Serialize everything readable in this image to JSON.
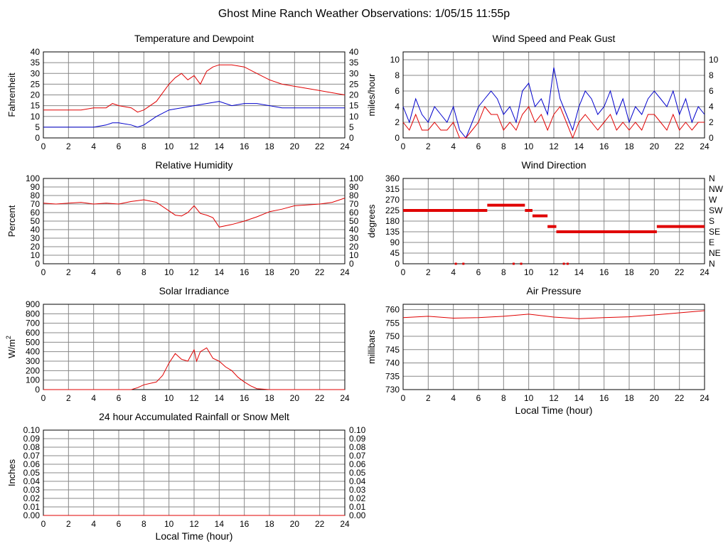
{
  "page_title": "Ghost Mine Ranch Weather Observations: 1/05/15 11:55p",
  "colors": {
    "red": "#e00000",
    "blue": "#0000cc",
    "grid": "#888888",
    "axis": "#000000"
  },
  "chart_data": [
    {
      "id": "temperature",
      "type": "line",
      "title": "Temperature and Dewpoint",
      "ylabel": "Fahrenheit",
      "xlabel": "",
      "xlim": [
        0,
        24
      ],
      "ylim": [
        0,
        40
      ],
      "x_ticks": [
        "0",
        "2",
        "4",
        "6",
        "8",
        "10",
        "12",
        "14",
        "16",
        "18",
        "20",
        "22",
        "24"
      ],
      "y_ticks": [
        "0",
        "5",
        "10",
        "15",
        "20",
        "25",
        "30",
        "35",
        "40"
      ],
      "right_ticks": [
        "0",
        "5",
        "10",
        "15",
        "20",
        "25",
        "30",
        "35",
        "40"
      ],
      "grid": true,
      "series": [
        {
          "color": "#e00000",
          "step": false,
          "x": [
            0,
            1,
            2,
            3,
            4,
            5,
            5.5,
            6,
            7,
            7.5,
            8,
            9,
            10,
            10.5,
            11,
            11.5,
            12,
            12.5,
            13,
            13.5,
            14,
            15,
            16,
            17,
            18,
            19,
            20,
            21,
            22,
            23,
            24
          ],
          "y": [
            13,
            13,
            13,
            13,
            14,
            14,
            16,
            15,
            14,
            12,
            13,
            17,
            25,
            28,
            30,
            27,
            29,
            25,
            31,
            33,
            34,
            34,
            33,
            30,
            27,
            25,
            24,
            23,
            22,
            21,
            20
          ]
        },
        {
          "color": "#0000cc",
          "step": false,
          "x": [
            0,
            1,
            2,
            3,
            4,
            5,
            5.5,
            6,
            7,
            7.5,
            8,
            9,
            10,
            11,
            12,
            13,
            14,
            15,
            16,
            17,
            18,
            19,
            20,
            21,
            22,
            23,
            24
          ],
          "y": [
            5,
            5,
            5,
            5,
            5,
            6,
            7,
            7,
            6,
            5,
            6,
            10,
            13,
            14,
            15,
            16,
            17,
            15,
            16,
            16,
            15,
            14,
            14,
            14,
            14,
            14,
            14
          ]
        }
      ]
    },
    {
      "id": "wind_speed",
      "type": "line",
      "title": "Wind Speed and Peak Gust",
      "ylabel": "miles/hour",
      "xlabel": "",
      "xlim": [
        0,
        24
      ],
      "ylim": [
        0,
        11
      ],
      "x_ticks": [
        "0",
        "2",
        "4",
        "6",
        "8",
        "10",
        "12",
        "14",
        "16",
        "18",
        "20",
        "22",
        "24"
      ],
      "y_ticks": [
        "0",
        "2",
        "4",
        "6",
        "8",
        "10"
      ],
      "y_tick_values": [
        0,
        2,
        4,
        6,
        8,
        10
      ],
      "right_ticks": [
        "0",
        "2",
        "4",
        "6",
        "8",
        "10"
      ],
      "grid": true,
      "series": [
        {
          "color": "#0000cc",
          "step": false,
          "x": [
            0,
            0.5,
            1,
            1.5,
            2,
            2.5,
            3,
            3.5,
            4,
            4.5,
            5,
            5.5,
            6,
            6.5,
            7,
            7.5,
            8,
            8.5,
            9,
            9.5,
            10,
            10.5,
            11,
            11.5,
            12,
            12.5,
            13,
            13.5,
            14,
            14.5,
            15,
            15.5,
            16,
            16.5,
            17,
            17.5,
            18,
            18.5,
            19,
            19.5,
            20,
            20.5,
            21,
            21.5,
            22,
            22.5,
            23,
            23.5,
            24
          ],
          "y": [
            4,
            2,
            5,
            3,
            2,
            4,
            3,
            2,
            4,
            1,
            0,
            2,
            4,
            5,
            6,
            5,
            3,
            4,
            2,
            6,
            7,
            4,
            5,
            3,
            9,
            5,
            3,
            1,
            4,
            6,
            5,
            3,
            4,
            6,
            3,
            5,
            2,
            4,
            3,
            5,
            6,
            5,
            4,
            6,
            3,
            5,
            2,
            4,
            3
          ]
        },
        {
          "color": "#e00000",
          "step": false,
          "x": [
            0,
            0.5,
            1,
            1.5,
            2,
            2.5,
            3,
            3.5,
            4,
            4.5,
            5,
            5.5,
            6,
            6.5,
            7,
            7.5,
            8,
            8.5,
            9,
            9.5,
            10,
            10.5,
            11,
            11.5,
            12,
            12.5,
            13,
            13.5,
            14,
            14.5,
            15,
            15.5,
            16,
            16.5,
            17,
            17.5,
            18,
            18.5,
            19,
            19.5,
            20,
            20.5,
            21,
            21.5,
            22,
            22.5,
            23,
            23.5,
            24
          ],
          "y": [
            2,
            1,
            3,
            1,
            1,
            2,
            1,
            1,
            2,
            0,
            0,
            1,
            2,
            4,
            3,
            3,
            1,
            2,
            1,
            3,
            4,
            2,
            3,
            1,
            3,
            4,
            2,
            0,
            2,
            3,
            2,
            1,
            2,
            3,
            1,
            2,
            1,
            2,
            1,
            3,
            3,
            2,
            1,
            3,
            1,
            2,
            1,
            2,
            2
          ]
        }
      ]
    },
    {
      "id": "humidity",
      "type": "line",
      "title": "Relative Humidity",
      "ylabel": "Percent",
      "xlabel": "",
      "xlim": [
        0,
        24
      ],
      "ylim": [
        0,
        100
      ],
      "x_ticks": [
        "0",
        "2",
        "4",
        "6",
        "8",
        "10",
        "12",
        "14",
        "16",
        "18",
        "20",
        "22",
        "24"
      ],
      "y_ticks": [
        "0",
        "10",
        "20",
        "30",
        "40",
        "50",
        "60",
        "70",
        "80",
        "90",
        "100"
      ],
      "right_ticks": [
        "0",
        "10",
        "20",
        "30",
        "40",
        "50",
        "60",
        "70",
        "80",
        "90",
        "100"
      ],
      "grid": true,
      "series": [
        {
          "color": "#e00000",
          "step": false,
          "x": [
            0,
            1,
            2,
            3,
            4,
            5,
            6,
            7,
            7.5,
            8,
            9,
            10,
            10.5,
            11,
            11.5,
            12,
            12.5,
            13,
            13.5,
            14,
            15,
            16,
            17,
            18,
            19,
            20,
            21,
            22,
            23,
            24
          ],
          "y": [
            71,
            70,
            71,
            72,
            70,
            71,
            70,
            73,
            74,
            75,
            72,
            62,
            57,
            56,
            60,
            68,
            59,
            57,
            54,
            43,
            46,
            50,
            55,
            61,
            64,
            68,
            69,
            70,
            72,
            77
          ]
        }
      ]
    },
    {
      "id": "wind_direction",
      "type": "scatter",
      "title": "Wind Direction",
      "ylabel": "degrees",
      "xlabel": "",
      "xlim": [
        0,
        24
      ],
      "ylim": [
        0,
        360
      ],
      "x_ticks": [
        "0",
        "2",
        "4",
        "6",
        "8",
        "10",
        "12",
        "14",
        "16",
        "18",
        "20",
        "22",
        "24"
      ],
      "y_ticks": [
        "0",
        "45",
        "90",
        "135",
        "180",
        "225",
        "270",
        "315",
        "360"
      ],
      "right_ticks": [
        "N",
        "NE",
        "E",
        "SE",
        "S",
        "SW",
        "W",
        "NW",
        "N"
      ],
      "grid": true,
      "series": [
        {
          "color": "#e00000",
          "step": true,
          "segments": [
            [
              0,
              6.7,
              225
            ],
            [
              6.7,
              9.7,
              247
            ],
            [
              9.7,
              10.3,
              225
            ],
            [
              10.3,
              11.5,
              202
            ],
            [
              11.5,
              12.2,
              157
            ],
            [
              12.2,
              20.2,
              135
            ],
            [
              20.2,
              24,
              157
            ]
          ],
          "dots": [
            [
              4.2,
              0
            ],
            [
              4.8,
              0
            ],
            [
              8.8,
              0
            ],
            [
              9.4,
              0
            ],
            [
              12.8,
              0
            ],
            [
              13.1,
              0
            ]
          ]
        }
      ]
    },
    {
      "id": "solar",
      "type": "area",
      "title": "Solar Irradiance",
      "ylabel": "W/m",
      "ylabel_sup": "2",
      "xlabel": "",
      "xlim": [
        0,
        24
      ],
      "ylim": [
        0,
        900
      ],
      "x_ticks": [
        "0",
        "2",
        "4",
        "6",
        "8",
        "10",
        "12",
        "14",
        "16",
        "18",
        "20",
        "22",
        "24"
      ],
      "y_ticks": [
        "0",
        "100",
        "200",
        "300",
        "400",
        "500",
        "600",
        "700",
        "800",
        "900"
      ],
      "right_ticks": [],
      "grid": true,
      "series": [
        {
          "color": "#e00000",
          "step": false,
          "x": [
            0,
            7,
            7.5,
            8,
            9,
            9.5,
            10,
            10.5,
            11,
            11.5,
            12,
            12.2,
            12.5,
            13,
            13.5,
            14,
            14.5,
            15,
            15.5,
            16,
            16.5,
            17,
            18,
            24
          ],
          "y": [
            0,
            0,
            20,
            50,
            80,
            150,
            280,
            380,
            320,
            300,
            420,
            300,
            400,
            440,
            330,
            300,
            240,
            200,
            130,
            80,
            40,
            10,
            0,
            0
          ]
        }
      ]
    },
    {
      "id": "pressure",
      "type": "line",
      "title": "Air Pressure",
      "ylabel": "millibars",
      "xlabel": "Local Time (hour)",
      "xlim": [
        0,
        24
      ],
      "ylim": [
        730,
        762
      ],
      "x_ticks": [
        "0",
        "2",
        "4",
        "6",
        "8",
        "10",
        "12",
        "14",
        "16",
        "18",
        "20",
        "22",
        "24"
      ],
      "y_ticks": [
        "730",
        "735",
        "740",
        "745",
        "750",
        "755",
        "760"
      ],
      "y_tick_values": [
        730,
        735,
        740,
        745,
        750,
        755,
        760
      ],
      "right_ticks": [],
      "grid": true,
      "series": [
        {
          "color": "#e00000",
          "step": false,
          "x": [
            0,
            2,
            4,
            6,
            8,
            10,
            12,
            14,
            16,
            18,
            20,
            22,
            24
          ],
          "y": [
            757,
            757.5,
            756.8,
            757,
            757.5,
            758.3,
            757.2,
            756.6,
            757,
            757.3,
            758,
            758.8,
            759.6
          ]
        }
      ]
    },
    {
      "id": "rainfall",
      "type": "line",
      "title": "24 hour Accumulated Rainfall or Snow Melt",
      "ylabel": "Inches",
      "xlabel": "Local Time (hour)",
      "xlim": [
        0,
        24
      ],
      "ylim": [
        0,
        0.1
      ],
      "x_ticks": [
        "0",
        "2",
        "4",
        "6",
        "8",
        "10",
        "12",
        "14",
        "16",
        "18",
        "20",
        "22",
        "24"
      ],
      "y_ticks": [
        "0.00",
        "0.01",
        "0.02",
        "0.03",
        "0.04",
        "0.05",
        "0.06",
        "0.07",
        "0.08",
        "0.09",
        "0.10"
      ],
      "right_ticks": [
        "0.00",
        "0.01",
        "0.02",
        "0.03",
        "0.04",
        "0.05",
        "0.06",
        "0.07",
        "0.08",
        "0.09",
        "0.10"
      ],
      "grid": true,
      "series": [
        {
          "color": "#e00000",
          "step": false,
          "x": [
            0,
            24
          ],
          "y": [
            0,
            0
          ]
        }
      ]
    }
  ]
}
